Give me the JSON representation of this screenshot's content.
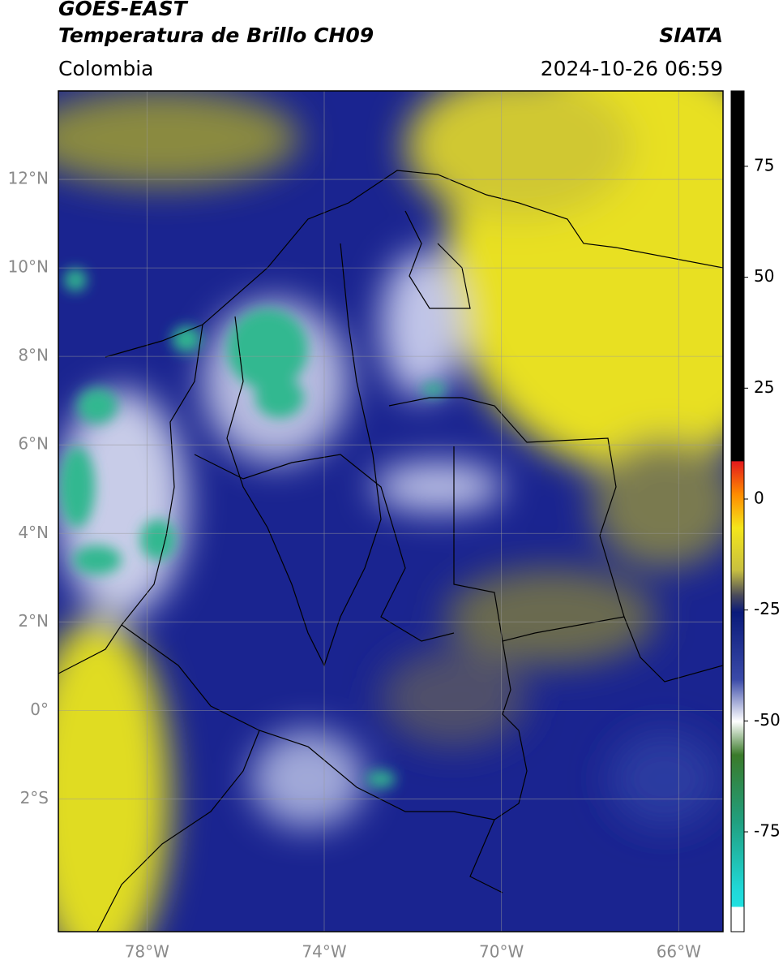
{
  "header": {
    "title_line1": "GOES-EAST",
    "title_line2": "Temperatura de Brillo CH09",
    "agency": "SIATA",
    "region": "Colombia",
    "datetime": "2024-10-26 06:59"
  },
  "map": {
    "xlim": [
      -80,
      -65
    ],
    "ylim": [
      -5,
      14
    ],
    "grid": true,
    "xticks": [
      {
        "value": -78,
        "label": "78°W"
      },
      {
        "value": -74,
        "label": "74°W"
      },
      {
        "value": -70,
        "label": "70°W"
      },
      {
        "value": -66,
        "label": "66°W"
      }
    ],
    "yticks": [
      {
        "value": 12,
        "label": "12°N"
      },
      {
        "value": 10,
        "label": "10°N"
      },
      {
        "value": 8,
        "label": "8°N"
      },
      {
        "value": 6,
        "label": "6°N"
      },
      {
        "value": 4,
        "label": "4°N"
      },
      {
        "value": 2,
        "label": "2°N"
      },
      {
        "value": 0,
        "label": "0°"
      },
      {
        "value": -2,
        "label": "2°S"
      }
    ]
  },
  "colorbar": {
    "lim": [
      -97.5,
      92
    ],
    "ticks": [
      75,
      50,
      25,
      0,
      -25,
      -50,
      -75
    ]
  }
}
